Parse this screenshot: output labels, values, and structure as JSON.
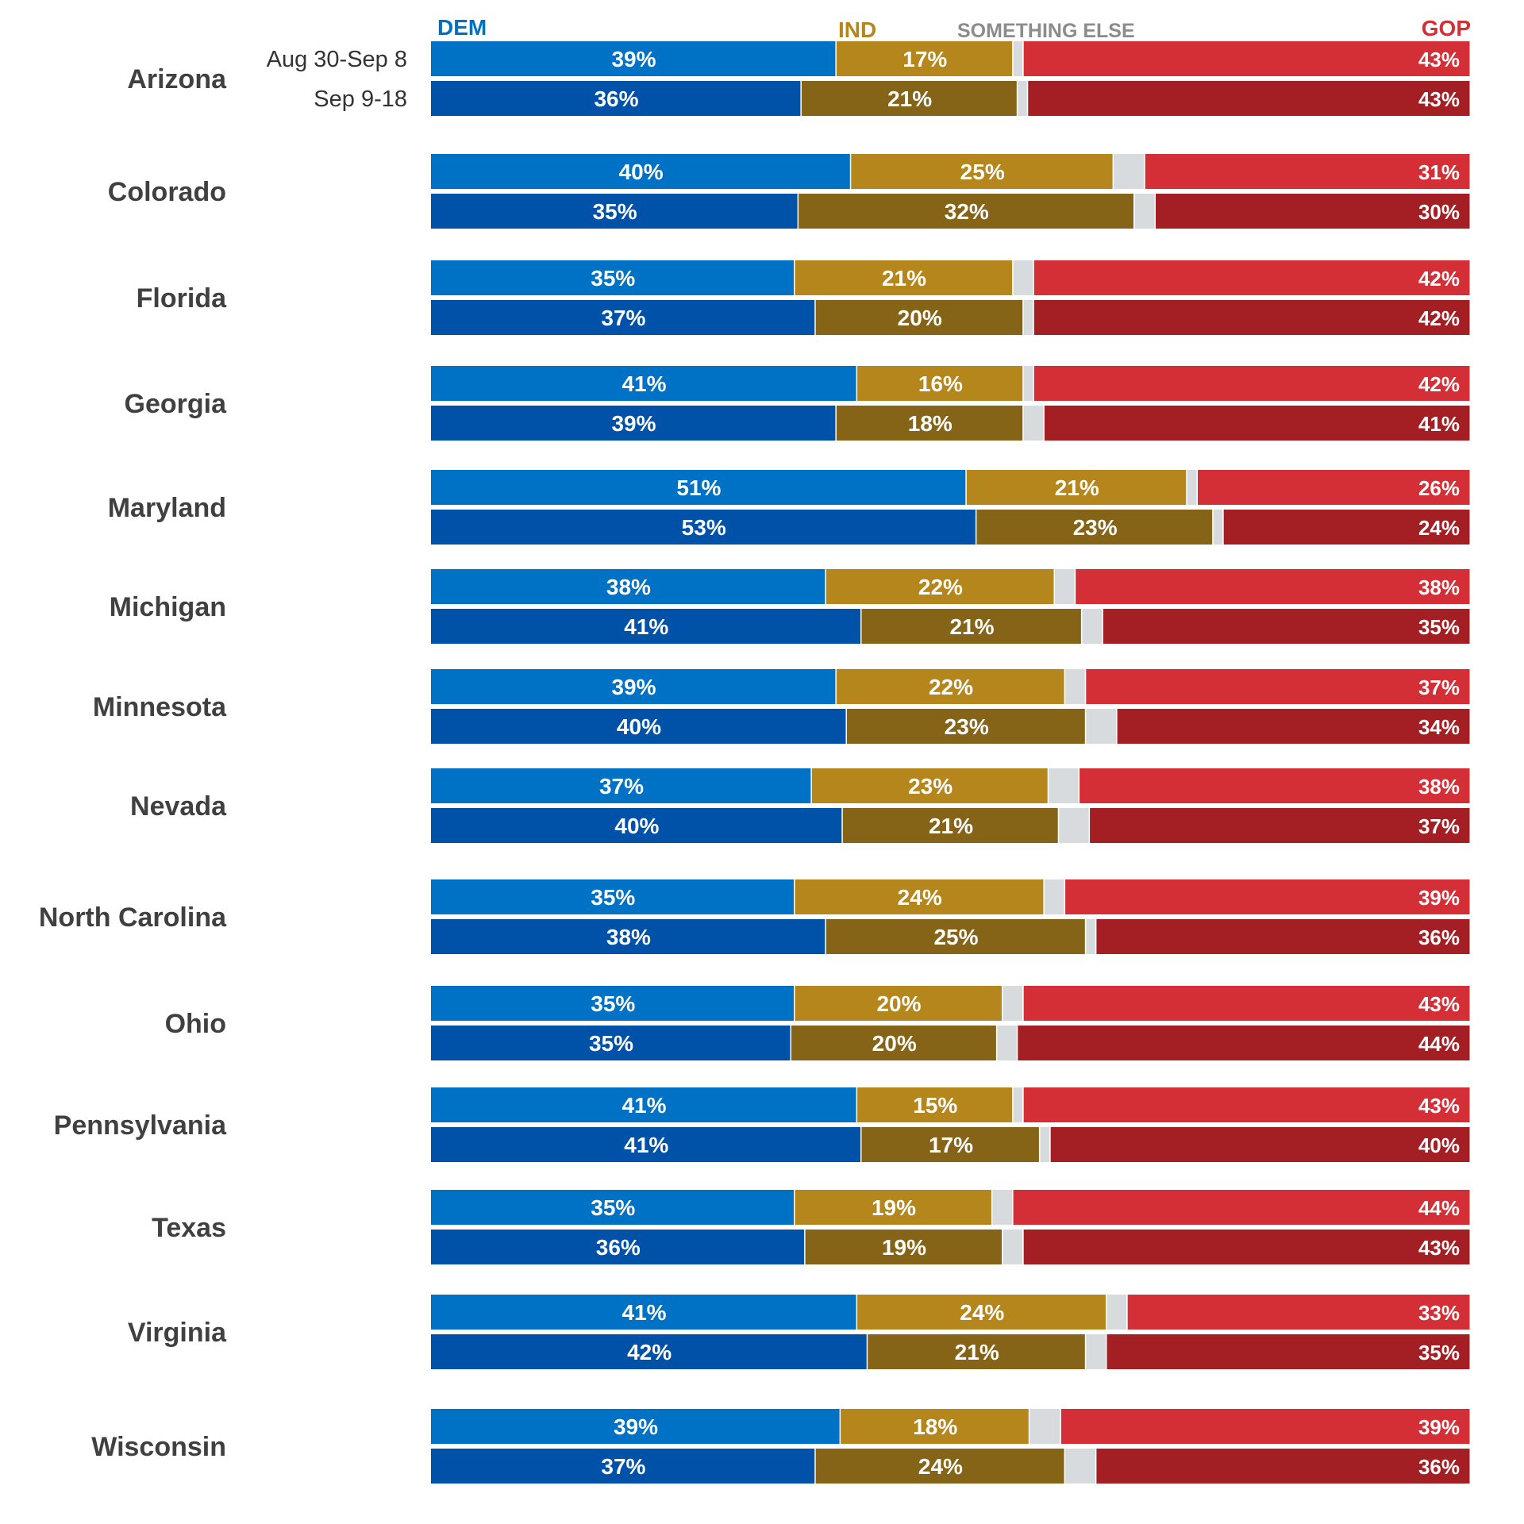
{
  "chart_data": {
    "type": "bar",
    "orientation": "horizontal",
    "stacked": "100%",
    "title": "",
    "legend": [
      {
        "key": "dem",
        "label": "DEM",
        "color": "#0070C0"
      },
      {
        "key": "ind",
        "label": "IND",
        "color": "#B5861C"
      },
      {
        "key": "else",
        "label": "SOMETHING ELSE",
        "color": "#8C8C8C"
      },
      {
        "key": "gop",
        "label": "GOP",
        "color": "#D42E36"
      }
    ],
    "periods": [
      "Aug 30-Sep 8",
      "Sep 9-18"
    ],
    "segment_colors": {
      "Aug 30-Sep 8": {
        "dem": "#0072C5",
        "ind": "#B5861C",
        "else": "#D8DBDD",
        "gop": "#D42E36"
      },
      "Sep 9-18": {
        "dem": "#0052A8",
        "ind": "#866417",
        "else": "#D8DBDD",
        "gop": "#A31F23"
      }
    },
    "categories": [
      "Arizona",
      "Colorado",
      "Florida",
      "Georgia",
      "Maryland",
      "Michigan",
      "Minnesota",
      "Nevada",
      "North Carolina",
      "Ohio",
      "Pennsylvania",
      "Texas",
      "Virginia",
      "Wisconsin"
    ],
    "series": [
      {
        "period": "Aug 30-Sep 8",
        "dem": [
          39,
          40,
          35,
          41,
          51,
          38,
          39,
          37,
          35,
          35,
          41,
          35,
          41,
          39
        ],
        "ind": [
          17,
          25,
          21,
          16,
          21,
          22,
          22,
          23,
          24,
          20,
          15,
          19,
          24,
          18
        ],
        "else": [
          1,
          3,
          2,
          1,
          1,
          2,
          2,
          3,
          2,
          2,
          1,
          2,
          2,
          3
        ],
        "gop": [
          43,
          31,
          42,
          42,
          26,
          38,
          37,
          38,
          39,
          43,
          43,
          44,
          33,
          39
        ]
      },
      {
        "period": "Sep 9-18",
        "dem": [
          36,
          35,
          37,
          39,
          53,
          41,
          40,
          40,
          38,
          35,
          41,
          36,
          42,
          37
        ],
        "ind": [
          21,
          32,
          20,
          18,
          23,
          21,
          23,
          21,
          25,
          20,
          17,
          19,
          21,
          24
        ],
        "else": [
          1,
          2,
          1,
          2,
          1,
          2,
          3,
          3,
          1,
          2,
          1,
          2,
          2,
          3
        ],
        "gop": [
          43,
          30,
          42,
          41,
          24,
          35,
          34,
          37,
          36,
          44,
          40,
          43,
          35,
          36
        ]
      }
    ],
    "value_labels": {
      "Aug 30-Sep 8": {
        "dem": [
          "39%",
          "40%",
          "35%",
          "41%",
          "51%",
          "38%",
          "39%",
          "37%",
          "35%",
          "35%",
          "41%",
          "35%",
          "41%",
          "39%"
        ],
        "ind": [
          "17%",
          "25%",
          "21%",
          "16%",
          "21%",
          "22%",
          "22%",
          "23%",
          "24%",
          "20%",
          "15%",
          "19%",
          "24%",
          "18%"
        ],
        "gop": [
          "43%",
          "31%",
          "42%",
          "42%",
          "26%",
          "38%",
          "37%",
          "38%",
          "39%",
          "43%",
          "43%",
          "44%",
          "33%",
          "39%"
        ]
      },
      "Sep 9-18": {
        "dem": [
          "36%",
          "35%",
          "37%",
          "39%",
          "53%",
          "41%",
          "40%",
          "40%",
          "38%",
          "35%",
          "41%",
          "36%",
          "42%",
          "37%"
        ],
        "ind": [
          "21%",
          "32%",
          "20%",
          "18%",
          "23%",
          "21%",
          "23%",
          "21%",
          "25%",
          "20%",
          "17%",
          "19%",
          "21%",
          "24%"
        ],
        "gop": [
          "43%",
          "30%",
          "42%",
          "41%",
          "24%",
          "35%",
          "34%",
          "37%",
          "36%",
          "44%",
          "40%",
          "43%",
          "35%",
          "36%"
        ]
      }
    },
    "xlim": [
      0,
      100
    ]
  }
}
